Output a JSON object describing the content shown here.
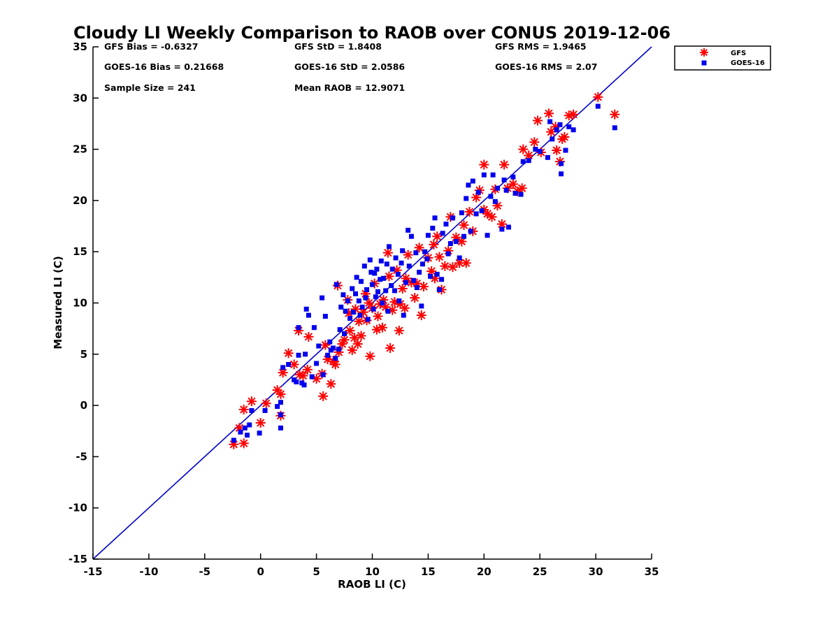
{
  "chart_data": {
    "type": "scatter",
    "title": "Cloudy LI Weekly Comparison to RAOB over CONUS 2019-12-06",
    "xlabel": "RAOB LI (C)",
    "ylabel": "Measured LI (C)",
    "xlim": [
      -15,
      35
    ],
    "ylim": [
      -15,
      35
    ],
    "xticks": [
      -15,
      -10,
      -5,
      0,
      5,
      10,
      15,
      20,
      25,
      30,
      35
    ],
    "yticks": [
      -15,
      -10,
      -5,
      0,
      5,
      10,
      15,
      20,
      25,
      30,
      35
    ],
    "xtick_labels": [
      "-15",
      "-10",
      "-5",
      "0",
      "5",
      "10",
      "15",
      "20",
      "25",
      "30",
      "35"
    ],
    "ytick_labels": [
      "-15",
      "-10",
      "-5",
      "0",
      "5",
      "10",
      "15",
      "20",
      "25",
      "30",
      "35"
    ],
    "grid": false,
    "legend": {
      "position": "outside-top-right",
      "entries": [
        "GFS",
        "GOES-16"
      ]
    },
    "stats": {
      "row1": [
        "GFS Bias = -0.6327",
        "GFS StD = 1.8408",
        "GFS RMS = 1.9465"
      ],
      "row2": [
        "GOES-16 Bias = 0.21668",
        "GOES-16 StD = 2.0586",
        "GOES-16 RMS = 2.07"
      ],
      "row3": [
        "Sample Size = 241",
        "Mean RAOB = 12.9071"
      ]
    },
    "reference_line": {
      "from": [
        -15,
        -15
      ],
      "to": [
        35,
        35
      ],
      "color": "#0000cc"
    },
    "series": [
      {
        "name": "GFS",
        "marker": "asterisk",
        "color": "#ff0000",
        "points": [
          [
            -2.4,
            -3.8
          ],
          [
            -1.5,
            -3.7
          ],
          [
            -1.9,
            -2.2
          ],
          [
            -1.5,
            -0.4
          ],
          [
            -0.8,
            0.4
          ],
          [
            0.0,
            -1.7
          ],
          [
            0.5,
            0.2
          ],
          [
            1.5,
            1.5
          ],
          [
            1.8,
            1.1
          ],
          [
            1.8,
            -1.0
          ],
          [
            2.0,
            3.2
          ],
          [
            2.5,
            5.1
          ],
          [
            3.0,
            4.0
          ],
          [
            3.4,
            7.3
          ],
          [
            3.5,
            3.0
          ],
          [
            3.8,
            2.9
          ],
          [
            4.2,
            3.5
          ],
          [
            4.3,
            6.7
          ],
          [
            5.0,
            2.6
          ],
          [
            5.5,
            3.1
          ],
          [
            5.6,
            0.9
          ],
          [
            5.8,
            5.9
          ],
          [
            6.0,
            4.5
          ],
          [
            6.3,
            2.1
          ],
          [
            6.5,
            4.3
          ],
          [
            6.7,
            4.0
          ],
          [
            6.9,
            11.7
          ],
          [
            7.0,
            5.2
          ],
          [
            7.3,
            6.0
          ],
          [
            7.5,
            6.4
          ],
          [
            7.8,
            10.3
          ],
          [
            7.9,
            9.0
          ],
          [
            8.0,
            7.3
          ],
          [
            8.2,
            5.4
          ],
          [
            8.4,
            6.6
          ],
          [
            8.5,
            9.4
          ],
          [
            8.7,
            6.0
          ],
          [
            8.8,
            8.2
          ],
          [
            9.0,
            6.8
          ],
          [
            9.2,
            9.1
          ],
          [
            9.4,
            10.9
          ],
          [
            9.5,
            8.3
          ],
          [
            9.7,
            10.0
          ],
          [
            9.8,
            4.8
          ],
          [
            10.0,
            9.5
          ],
          [
            10.2,
            11.9
          ],
          [
            10.4,
            7.4
          ],
          [
            10.5,
            8.7
          ],
          [
            10.7,
            9.9
          ],
          [
            10.9,
            7.6
          ],
          [
            11.0,
            10.3
          ],
          [
            11.2,
            9.6
          ],
          [
            11.4,
            14.9
          ],
          [
            11.5,
            12.6
          ],
          [
            11.6,
            5.6
          ],
          [
            11.8,
            9.3
          ],
          [
            12.0,
            10.1
          ],
          [
            12.2,
            13.2
          ],
          [
            12.4,
            7.3
          ],
          [
            12.5,
            9.9
          ],
          [
            12.7,
            11.4
          ],
          [
            12.9,
            9.5
          ],
          [
            13.0,
            12.4
          ],
          [
            13.2,
            14.7
          ],
          [
            13.5,
            12.0
          ],
          [
            13.8,
            10.5
          ],
          [
            14.0,
            11.9
          ],
          [
            14.2,
            15.4
          ],
          [
            14.4,
            8.8
          ],
          [
            14.6,
            11.6
          ],
          [
            15.0,
            14.4
          ],
          [
            15.3,
            13.1
          ],
          [
            15.5,
            15.7
          ],
          [
            15.6,
            12.4
          ],
          [
            15.8,
            16.5
          ],
          [
            16.0,
            14.5
          ],
          [
            16.2,
            11.3
          ],
          [
            16.5,
            13.6
          ],
          [
            16.8,
            15.1
          ],
          [
            17.0,
            18.4
          ],
          [
            17.2,
            13.5
          ],
          [
            17.5,
            16.4
          ],
          [
            17.8,
            13.9
          ],
          [
            18.0,
            16.0
          ],
          [
            18.2,
            17.6
          ],
          [
            18.4,
            13.9
          ],
          [
            18.7,
            18.9
          ],
          [
            19.0,
            17.0
          ],
          [
            19.3,
            20.3
          ],
          [
            19.6,
            21.0
          ],
          [
            20.0,
            19.1
          ],
          [
            20.0,
            23.5
          ],
          [
            20.3,
            18.7
          ],
          [
            20.7,
            18.4
          ],
          [
            21.0,
            21.1
          ],
          [
            21.2,
            19.5
          ],
          [
            21.6,
            17.7
          ],
          [
            21.8,
            23.5
          ],
          [
            22.1,
            21.2
          ],
          [
            22.6,
            21.6
          ],
          [
            23.0,
            20.9
          ],
          [
            23.4,
            21.2
          ],
          [
            23.5,
            25.0
          ],
          [
            24.0,
            24.4
          ],
          [
            24.5,
            25.7
          ],
          [
            24.8,
            27.8
          ],
          [
            25.1,
            24.7
          ],
          [
            25.8,
            28.5
          ],
          [
            26.0,
            26.7
          ],
          [
            26.4,
            27.2
          ],
          [
            26.5,
            24.9
          ],
          [
            26.8,
            23.8
          ],
          [
            27.0,
            26.0
          ],
          [
            27.2,
            26.2
          ],
          [
            27.6,
            28.3
          ],
          [
            28.0,
            28.4
          ],
          [
            30.2,
            30.1
          ],
          [
            31.7,
            28.4
          ]
        ]
      },
      {
        "name": "GOES-16",
        "marker": "square",
        "color": "#0000ee",
        "points": [
          [
            -2.4,
            -3.4
          ],
          [
            -1.8,
            -2.6
          ],
          [
            -1.4,
            -2.2
          ],
          [
            -1.2,
            -2.9
          ],
          [
            -1.0,
            -1.9
          ],
          [
            -0.8,
            -0.5
          ],
          [
            -0.1,
            -2.7
          ],
          [
            0.4,
            -0.5
          ],
          [
            1.5,
            -0.1
          ],
          [
            1.8,
            0.3
          ],
          [
            1.8,
            -0.9
          ],
          [
            1.8,
            -2.2
          ],
          [
            2.0,
            3.7
          ],
          [
            2.5,
            4.0
          ],
          [
            3.0,
            2.5
          ],
          [
            3.2,
            2.3
          ],
          [
            3.4,
            4.9
          ],
          [
            3.4,
            7.6
          ],
          [
            3.7,
            2.2
          ],
          [
            3.9,
            2.0
          ],
          [
            4.0,
            5.0
          ],
          [
            4.1,
            9.4
          ],
          [
            4.3,
            8.8
          ],
          [
            4.6,
            2.8
          ],
          [
            4.8,
            7.6
          ],
          [
            5.0,
            4.1
          ],
          [
            5.2,
            5.8
          ],
          [
            5.5,
            10.5
          ],
          [
            5.6,
            3.0
          ],
          [
            5.8,
            8.7
          ],
          [
            6.0,
            4.9
          ],
          [
            6.2,
            6.2
          ],
          [
            6.3,
            5.4
          ],
          [
            6.5,
            5.6
          ],
          [
            6.7,
            4.6
          ],
          [
            6.8,
            11.8
          ],
          [
            7.0,
            5.5
          ],
          [
            7.1,
            7.4
          ],
          [
            7.2,
            9.6
          ],
          [
            7.4,
            10.8
          ],
          [
            7.5,
            7.0
          ],
          [
            7.6,
            9.2
          ],
          [
            7.8,
            10.2
          ],
          [
            8.0,
            8.5
          ],
          [
            8.2,
            11.4
          ],
          [
            8.3,
            9.1
          ],
          [
            8.5,
            10.9
          ],
          [
            8.6,
            12.5
          ],
          [
            8.8,
            10.2
          ],
          [
            8.9,
            8.8
          ],
          [
            9.0,
            12.1
          ],
          [
            9.1,
            9.6
          ],
          [
            9.3,
            13.6
          ],
          [
            9.4,
            10.5
          ],
          [
            9.5,
            11.3
          ],
          [
            9.6,
            8.4
          ],
          [
            9.8,
            14.2
          ],
          [
            9.9,
            13.0
          ],
          [
            10.0,
            11.8
          ],
          [
            10.1,
            9.4
          ],
          [
            10.2,
            12.9
          ],
          [
            10.3,
            10.6
          ],
          [
            10.4,
            13.3
          ],
          [
            10.5,
            11.1
          ],
          [
            10.7,
            12.3
          ],
          [
            10.8,
            14.1
          ],
          [
            10.9,
            10.0
          ],
          [
            11.0,
            12.4
          ],
          [
            11.2,
            11.2
          ],
          [
            11.3,
            13.8
          ],
          [
            11.4,
            9.2
          ],
          [
            11.5,
            15.5
          ],
          [
            11.7,
            11.7
          ],
          [
            11.8,
            13.3
          ],
          [
            12.0,
            11.2
          ],
          [
            12.1,
            14.4
          ],
          [
            12.3,
            12.8
          ],
          [
            12.4,
            10.2
          ],
          [
            12.6,
            13.9
          ],
          [
            12.7,
            15.1
          ],
          [
            12.8,
            8.8
          ],
          [
            13.0,
            12.0
          ],
          [
            13.2,
            17.1
          ],
          [
            13.3,
            13.6
          ],
          [
            13.5,
            16.5
          ],
          [
            13.7,
            12.2
          ],
          [
            13.9,
            14.9
          ],
          [
            14.0,
            11.5
          ],
          [
            14.2,
            13.0
          ],
          [
            14.4,
            9.7
          ],
          [
            14.5,
            13.8
          ],
          [
            14.7,
            15.0
          ],
          [
            14.9,
            14.3
          ],
          [
            15.0,
            16.6
          ],
          [
            15.2,
            12.6
          ],
          [
            15.4,
            17.3
          ],
          [
            15.6,
            18.3
          ],
          [
            15.8,
            12.8
          ],
          [
            16.0,
            11.3
          ],
          [
            16.2,
            12.3
          ],
          [
            16.3,
            16.8
          ],
          [
            16.6,
            17.7
          ],
          [
            16.8,
            14.8
          ],
          [
            17.0,
            15.8
          ],
          [
            17.2,
            18.3
          ],
          [
            17.5,
            16.0
          ],
          [
            17.8,
            14.4
          ],
          [
            18.0,
            18.8
          ],
          [
            18.2,
            16.5
          ],
          [
            18.4,
            20.2
          ],
          [
            18.6,
            21.5
          ],
          [
            18.8,
            17.0
          ],
          [
            19.0,
            21.9
          ],
          [
            19.3,
            18.7
          ],
          [
            19.5,
            20.8
          ],
          [
            19.8,
            19.0
          ],
          [
            20.0,
            22.5
          ],
          [
            20.3,
            16.6
          ],
          [
            20.6,
            20.4
          ],
          [
            20.8,
            22.5
          ],
          [
            21.0,
            19.9
          ],
          [
            21.2,
            21.2
          ],
          [
            21.6,
            17.2
          ],
          [
            21.8,
            22.0
          ],
          [
            22.0,
            21.0
          ],
          [
            22.2,
            17.4
          ],
          [
            22.6,
            22.3
          ],
          [
            22.8,
            20.7
          ],
          [
            23.3,
            20.6
          ],
          [
            23.5,
            23.8
          ],
          [
            24.0,
            23.9
          ],
          [
            24.6,
            25.0
          ],
          [
            25.0,
            24.8
          ],
          [
            25.7,
            24.2
          ],
          [
            25.9,
            27.7
          ],
          [
            26.1,
            26.0
          ],
          [
            26.5,
            26.9
          ],
          [
            26.8,
            27.4
          ],
          [
            26.9,
            22.6
          ],
          [
            26.9,
            23.6
          ],
          [
            27.3,
            24.9
          ],
          [
            27.6,
            27.2
          ],
          [
            28.0,
            26.9
          ],
          [
            30.2,
            29.2
          ],
          [
            31.7,
            27.1
          ]
        ]
      }
    ]
  }
}
